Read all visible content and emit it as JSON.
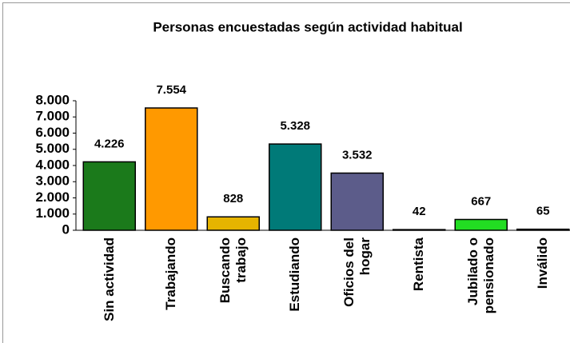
{
  "chart_data": {
    "type": "bar",
    "title": "Personas encuestadas según actividad habitual",
    "categories": [
      "Sin actividad",
      "Trabajando",
      "Buscando trabajo",
      "Estudiando",
      "Oficios del hogar",
      "Rentista",
      "Jubilado o pensionado",
      "Inválido"
    ],
    "values": [
      4226,
      7554,
      828,
      5328,
      3532,
      42,
      667,
      65
    ],
    "value_labels": [
      "4.226",
      "7.554",
      "828",
      "5.328",
      "3.532",
      "42",
      "667",
      "65"
    ],
    "colors": [
      "#1b7a1b",
      "#ff9900",
      "#e6b400",
      "#007a78",
      "#5c5c8a",
      "#3a3a5c",
      "#22dd22",
      "#2a8a7a"
    ],
    "ylim": [
      0,
      8000
    ],
    "yticks": [
      {
        "value": 0,
        "label": "0"
      },
      {
        "value": 1000,
        "label": "1.000"
      },
      {
        "value": 2000,
        "label": "2.000"
      },
      {
        "value": 3000,
        "label": "3.000"
      },
      {
        "value": 4000,
        "label": "4.000"
      },
      {
        "value": 5000,
        "label": "5.000"
      },
      {
        "value": 6000,
        "label": "6.000"
      },
      {
        "value": 7000,
        "label": "7.000"
      },
      {
        "value": 8000,
        "label": "8.000"
      }
    ]
  }
}
